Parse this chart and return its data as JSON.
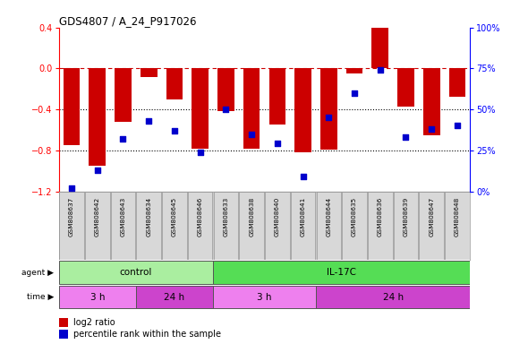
{
  "title": "GDS4807 / A_24_P917026",
  "samples": [
    "GSM808637",
    "GSM808642",
    "GSM808643",
    "GSM808634",
    "GSM808645",
    "GSM808646",
    "GSM808633",
    "GSM808638",
    "GSM808640",
    "GSM808641",
    "GSM808644",
    "GSM808635",
    "GSM808636",
    "GSM808639",
    "GSM808647",
    "GSM808648"
  ],
  "log2_ratio": [
    -0.75,
    -0.95,
    -0.52,
    -0.08,
    -0.3,
    -0.78,
    -0.42,
    -0.78,
    -0.55,
    -0.82,
    -0.79,
    -0.05,
    0.42,
    -0.37,
    -0.65,
    -0.28
  ],
  "percentile": [
    2,
    13,
    32,
    43,
    37,
    24,
    50,
    35,
    29,
    9,
    45,
    60,
    74,
    33,
    38,
    40
  ],
  "ylim_left": [
    -1.2,
    0.4
  ],
  "ylim_right": [
    0,
    100
  ],
  "yticks_left": [
    -1.2,
    -0.8,
    -0.4,
    0.0,
    0.4
  ],
  "yticks_right": [
    0,
    25,
    50,
    75,
    100
  ],
  "agent_groups": [
    {
      "label": "control",
      "start": 0,
      "end": 6,
      "color": "#AAEEA0"
    },
    {
      "label": "IL-17C",
      "start": 6,
      "end": 16,
      "color": "#55DD55"
    }
  ],
  "time_groups": [
    {
      "label": "3 h",
      "start": 0,
      "end": 3,
      "color": "#EE80EE"
    },
    {
      "label": "24 h",
      "start": 3,
      "end": 6,
      "color": "#CC44CC"
    },
    {
      "label": "3 h",
      "start": 6,
      "end": 10,
      "color": "#EE80EE"
    },
    {
      "label": "24 h",
      "start": 10,
      "end": 16,
      "color": "#CC44CC"
    }
  ],
  "bar_color": "#CC0000",
  "dot_color": "#0000CC",
  "ref_line_color": "#CC0000",
  "bg_color": "#FFFFFF",
  "sample_box_facecolor": "#D8D8D8",
  "sample_box_edgecolor": "#999999",
  "legend_red_label": "log2 ratio",
  "legend_blue_label": "percentile rank within the sample"
}
